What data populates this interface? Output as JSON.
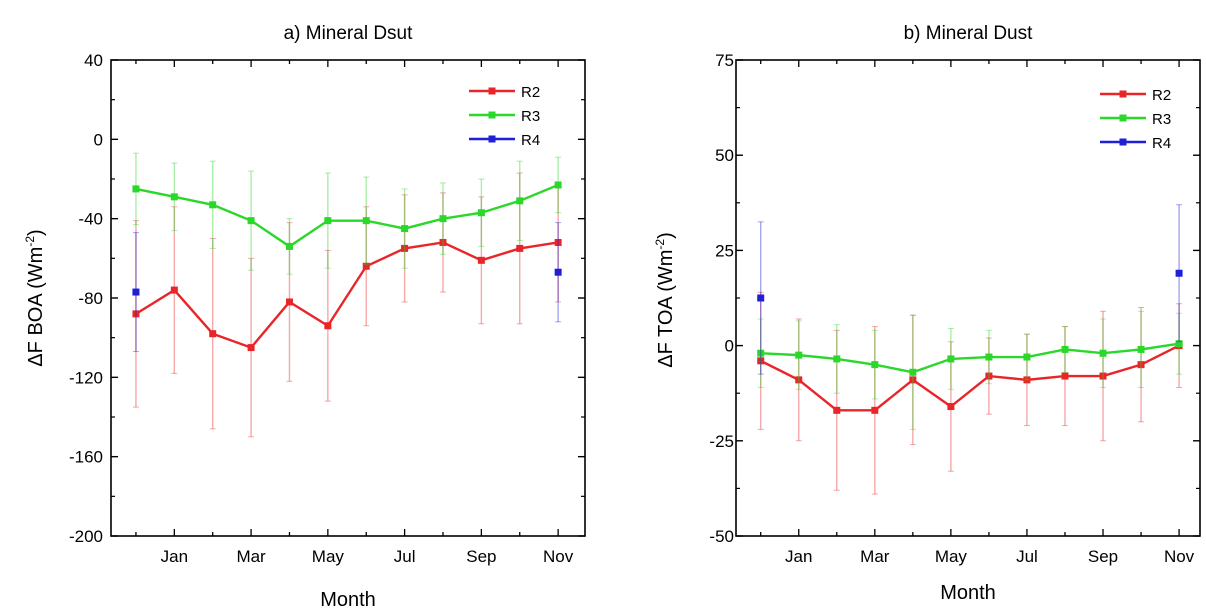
{
  "chart_data": [
    {
      "type": "line",
      "title": "a) Mineral Dsut",
      "xlabel": "Month",
      "ylabel_main": "ΔF BOA (Wm",
      "ylabel_sup": "-2",
      "ylabel_tail": ")",
      "ylim": [
        -200,
        40
      ],
      "yticks": [
        40,
        0,
        -40,
        -80,
        -120,
        -160,
        -200
      ],
      "ytick_labels": [
        "40",
        "0",
        "-40",
        "-80",
        "-120",
        "-160",
        "-200"
      ],
      "xticks": [
        2,
        4,
        6,
        8,
        10,
        12
      ],
      "xtick_labels": [
        "Jan",
        "Mar",
        "May",
        "Jul",
        "Sep",
        "Nov"
      ],
      "x": [
        1,
        2,
        3,
        4,
        5,
        6,
        7,
        8,
        9,
        10,
        11,
        12
      ],
      "legend_position": "top-right",
      "series": [
        {
          "name": "R2",
          "color": "#e8262a",
          "values": [
            -88,
            -76,
            -98,
            -105,
            -82,
            -94,
            -64,
            -55,
            -52,
            -61,
            -55,
            -52
          ],
          "errors": [
            47,
            42,
            48,
            45,
            40,
            38,
            30,
            27,
            25,
            32,
            38,
            30
          ]
        },
        {
          "name": "R3",
          "color": "#2ad82a",
          "values": [
            -25,
            -29,
            -33,
            -41,
            -54,
            -41,
            -41,
            -45,
            -40,
            -37,
            -31,
            -23
          ],
          "errors": [
            18,
            17,
            22,
            25,
            14,
            24,
            22,
            20,
            18,
            17,
            20,
            14
          ]
        },
        {
          "name": "R4",
          "color": "#1f1fd6",
          "x": [
            1,
            12
          ],
          "values": [
            -77,
            -67
          ],
          "errors": [
            30,
            25
          ]
        }
      ]
    },
    {
      "type": "line",
      "title": "b)  Mineral Dust",
      "xlabel": "Month",
      "ylabel_main": "ΔF TOA (Wm",
      "ylabel_sup": "-2",
      "ylabel_tail": ")",
      "ylim": [
        -50,
        75
      ],
      "yticks": [
        75,
        50,
        25,
        0,
        -25,
        -50
      ],
      "ytick_labels": [
        "75",
        "50",
        "25",
        "0",
        "-25",
        "-50"
      ],
      "xticks": [
        2,
        4,
        6,
        8,
        10,
        12
      ],
      "xtick_labels": [
        "Jan",
        "Mar",
        "May",
        "Jul",
        "Sep",
        "Nov"
      ],
      "x": [
        1,
        2,
        3,
        4,
        5,
        6,
        7,
        8,
        9,
        10,
        11,
        12
      ],
      "legend_position": "top-right",
      "series": [
        {
          "name": "R2",
          "color": "#e8262a",
          "values": [
            -4,
            -9,
            -17,
            -17,
            -9,
            -16,
            -8,
            -9,
            -8,
            -8,
            -5,
            0
          ],
          "errors": [
            18,
            16,
            21,
            22,
            17,
            17,
            10,
            12,
            13,
            17,
            15,
            11
          ]
        },
        {
          "name": "R3",
          "color": "#2ad82a",
          "values": [
            -2,
            -2.5,
            -3.5,
            -5,
            -7,
            -3.5,
            -3,
            -3,
            -1,
            -2,
            -1,
            0.5
          ],
          "errors": [
            9,
            9,
            9,
            9,
            15,
            8,
            7,
            6,
            6,
            9,
            10,
            8
          ]
        },
        {
          "name": "R4",
          "color": "#1f1fd6",
          "x": [
            1,
            12
          ],
          "values": [
            12.5,
            19
          ],
          "errors": [
            20,
            18
          ]
        }
      ]
    }
  ]
}
